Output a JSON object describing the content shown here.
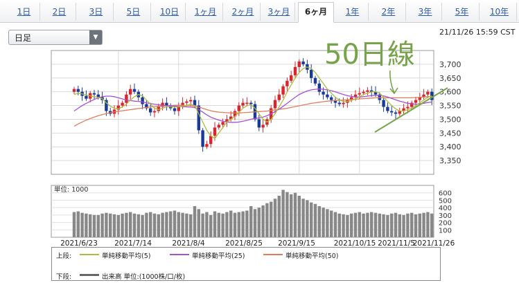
{
  "tabs": [
    {
      "label": "1日",
      "active": false
    },
    {
      "label": "2日",
      "active": false
    },
    {
      "label": "3日",
      "active": false
    },
    {
      "label": "5日",
      "active": false
    },
    {
      "label": "10日",
      "active": false
    },
    {
      "label": "1ヶ月",
      "active": false
    },
    {
      "label": "2ヶ月",
      "active": false
    },
    {
      "label": "3ヶ月",
      "active": false
    },
    {
      "label": "6ヶ月",
      "active": true
    },
    {
      "label": "1年",
      "active": false
    },
    {
      "label": "2年",
      "active": false
    },
    {
      "label": "3年",
      "active": false
    },
    {
      "label": "5年",
      "active": false
    },
    {
      "label": "10年",
      "active": false
    }
  ],
  "period_select": {
    "value": "日足"
  },
  "timestamp": "21/11/26 15:59 CST",
  "annotation": {
    "text": "50日線",
    "color": "#77a34a"
  },
  "legend": {
    "upper_label": "上段:",
    "lower_label": "下段:",
    "ma5": "単純移動平均(5)",
    "ma25": "単純移動平均(25)",
    "ma50": "単純移動平均(50)",
    "volume": "出来高 単位:(1000株/口/枚)"
  },
  "colors": {
    "up": "#d9252c",
    "down": "#1a3a9a",
    "ma5": "#a8bf3c",
    "ma25": "#a64fd6",
    "ma50": "#e07c5a",
    "volume": "#888888",
    "trendline": "#77a34a"
  },
  "chart_data": [
    {
      "type": "candlestick",
      "xlabels": [
        "2021/6/23",
        "2021/7/14",
        "2021/8/4",
        "2021/8/25",
        "2021/9/15",
        "2021/10/15",
        "2021/11/5",
        "2021/11/26"
      ],
      "ylim": [
        3300,
        3750
      ],
      "yticks": [
        3350,
        3400,
        3450,
        3500,
        3550,
        3600,
        3650,
        3700
      ],
      "grid": true,
      "series": [
        {
          "name": "単純移動平均(5)"
        },
        {
          "name": "単純移動平均(25)"
        },
        {
          "name": "単純移動平均(50)"
        }
      ],
      "close": [
        3610,
        3600,
        3585,
        3575,
        3595,
        3590,
        3580,
        3570,
        3530,
        3520,
        3535,
        3550,
        3560,
        3590,
        3610,
        3600,
        3580,
        3555,
        3540,
        3525,
        3530,
        3545,
        3560,
        3550,
        3540,
        3530,
        3545,
        3560,
        3565,
        3570,
        3550,
        3460,
        3400,
        3410,
        3440,
        3470,
        3480,
        3490,
        3500,
        3510,
        3530,
        3550,
        3560,
        3560,
        3555,
        3500,
        3470,
        3480,
        3500,
        3540,
        3570,
        3590,
        3620,
        3640,
        3660,
        3690,
        3710,
        3700,
        3680,
        3650,
        3630,
        3600,
        3590,
        3580,
        3570,
        3560,
        3555,
        3560,
        3570,
        3580,
        3590,
        3595,
        3600,
        3605,
        3600,
        3590,
        3570,
        3545,
        3530,
        3525,
        3520,
        3530,
        3540,
        3545,
        3560,
        3570,
        3580,
        3590,
        3600,
        3570
      ],
      "ma5": [
        3590,
        3595,
        3592,
        3588,
        3585,
        3582,
        3580,
        3575,
        3560,
        3548,
        3540,
        3538,
        3545,
        3555,
        3570,
        3582,
        3590,
        3585,
        3570,
        3555,
        3540,
        3535,
        3540,
        3545,
        3545,
        3545,
        3545,
        3548,
        3550,
        3555,
        3550,
        3520,
        3490,
        3460,
        3440,
        3430,
        3450,
        3470,
        3490,
        3500,
        3510,
        3525,
        3540,
        3550,
        3553,
        3540,
        3520,
        3500,
        3490,
        3500,
        3520,
        3545,
        3570,
        3600,
        3625,
        3650,
        3670,
        3685,
        3690,
        3685,
        3670,
        3650,
        3630,
        3610,
        3595,
        3580,
        3570,
        3565,
        3565,
        3568,
        3575,
        3582,
        3590,
        3595,
        3600,
        3600,
        3595,
        3580,
        3565,
        3550,
        3538,
        3530,
        3530,
        3535,
        3540,
        3550,
        3560,
        3570,
        3580,
        3585
      ],
      "ma25": [
        3530,
        3540,
        3550,
        3558,
        3565,
        3572,
        3578,
        3582,
        3584,
        3584,
        3582,
        3578,
        3574,
        3570,
        3568,
        3566,
        3565,
        3563,
        3560,
        3557,
        3555,
        3553,
        3551,
        3550,
        3549,
        3548,
        3547,
        3546,
        3545,
        3544,
        3542,
        3535,
        3526,
        3516,
        3508,
        3502,
        3497,
        3493,
        3490,
        3489,
        3489,
        3490,
        3493,
        3496,
        3500,
        3503,
        3505,
        3508,
        3513,
        3520,
        3528,
        3537,
        3547,
        3558,
        3569,
        3580,
        3590,
        3597,
        3603,
        3607,
        3609,
        3610,
        3609,
        3607,
        3604,
        3600,
        3595,
        3590,
        3586,
        3583,
        3581,
        3581,
        3582,
        3584,
        3586,
        3587,
        3587,
        3585,
        3581,
        3576,
        3571,
        3566,
        3562,
        3558,
        3556,
        3555,
        3556,
        3558,
        3561,
        3563
      ],
      "ma50": [
        3475,
        3483,
        3490,
        3497,
        3503,
        3508,
        3513,
        3517,
        3521,
        3524,
        3527,
        3529,
        3531,
        3533,
        3535,
        3537,
        3539,
        3541,
        3543,
        3545,
        3546,
        3547,
        3548,
        3549,
        3550,
        3551,
        3551,
        3551,
        3550,
        3549,
        3547,
        3544,
        3540,
        3535,
        3531,
        3528,
        3526,
        3525,
        3524,
        3523,
        3523,
        3523,
        3524,
        3525,
        3526,
        3527,
        3528,
        3529,
        3530,
        3532,
        3534,
        3536,
        3538,
        3540,
        3543,
        3546,
        3549,
        3552,
        3555,
        3558,
        3560,
        3562,
        3564,
        3566,
        3567,
        3568,
        3569,
        3570,
        3571,
        3572,
        3573,
        3574,
        3575,
        3576,
        3577,
        3578,
        3578,
        3578,
        3578,
        3578,
        3578,
        3578,
        3578,
        3578,
        3578,
        3579,
        3580,
        3581,
        3582,
        3583
      ]
    },
    {
      "type": "bar",
      "unit_label": "単位: 1000",
      "ylim": [
        0,
        700
      ],
      "yticks": [
        100,
        200,
        300,
        400,
        500,
        600
      ],
      "values": [
        340,
        350,
        330,
        320,
        310,
        300,
        300,
        320,
        330,
        320,
        310,
        300,
        320,
        330,
        340,
        320,
        310,
        300,
        330,
        340,
        320,
        310,
        330,
        340,
        350,
        360,
        340,
        330,
        320,
        310,
        420,
        380,
        320,
        340,
        300,
        350,
        330,
        320,
        340,
        360,
        330,
        340,
        350,
        360,
        420,
        380,
        400,
        430,
        460,
        480,
        520,
        560,
        640,
        610,
        580,
        600,
        560,
        520,
        500,
        470,
        450,
        420,
        400,
        380,
        360,
        340,
        320,
        310,
        300,
        320,
        330,
        340,
        320,
        330,
        340,
        330,
        320,
        310,
        300,
        320,
        330,
        310,
        300,
        320,
        330,
        310,
        320,
        330,
        340,
        320
      ]
    }
  ]
}
